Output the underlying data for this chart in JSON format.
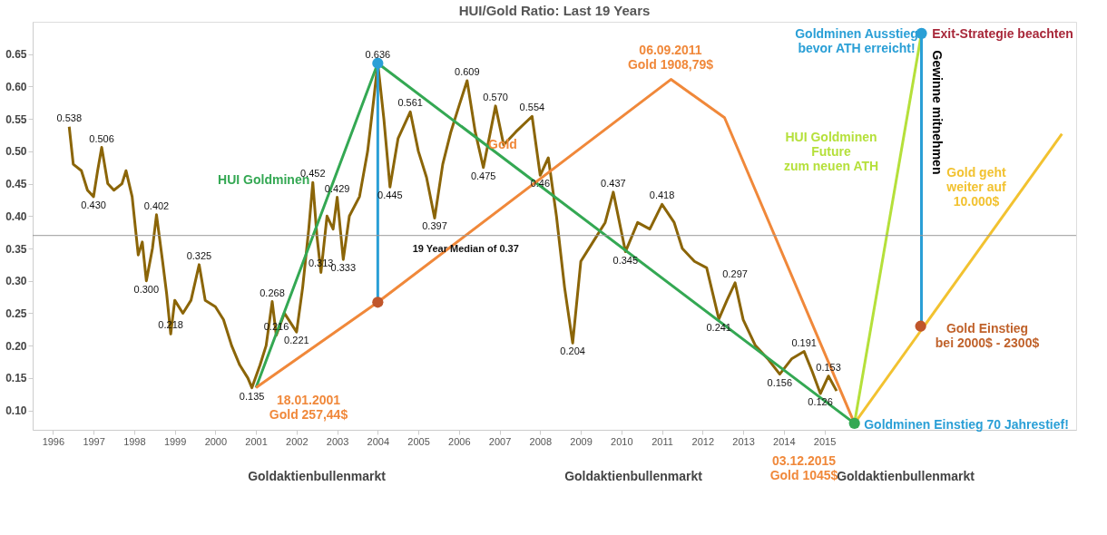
{
  "chart_data": {
    "type": "line",
    "title": "HUI/Gold Ratio: Last 19 Years",
    "xlim": [
      1995.5,
      2021.2
    ],
    "xticks": [
      1996,
      1997,
      1998,
      1999,
      2000,
      2001,
      2002,
      2003,
      2004,
      2005,
      2006,
      2007,
      2008,
      2009,
      2010,
      2011,
      2012,
      2013,
      2014,
      2015
    ],
    "ylim": [
      0.07,
      0.7
    ],
    "yticks": [
      {
        "value": 0.1,
        "label": "0.10"
      },
      {
        "value": 0.15,
        "label": "0.15"
      },
      {
        "value": 0.2,
        "label": "0.20"
      },
      {
        "value": 0.25,
        "label": "0.25"
      },
      {
        "value": 0.3,
        "label": "0.30"
      },
      {
        "value": 0.35,
        "label": "0.35"
      },
      {
        "value": 0.4,
        "label": "0.40"
      },
      {
        "value": 0.45,
        "label": "0.45"
      },
      {
        "value": 0.5,
        "label": "0.50"
      },
      {
        "value": 0.55,
        "label": "0.55"
      },
      {
        "value": 0.6,
        "label": "0.60"
      },
      {
        "value": 0.65,
        "label": "0.65"
      }
    ],
    "series": [
      {
        "color": "#8b6508",
        "x": [
          1996.4,
          1996.5,
          1996.7,
          1996.85,
          1997.0,
          1997.1,
          1997.2,
          1997.35,
          1997.5,
          1997.7,
          1997.8,
          1997.95,
          1998.1,
          1998.2,
          1998.3,
          1998.45,
          1998.55,
          1998.7,
          1998.8,
          1998.9,
          1999.0,
          1999.2,
          1999.4,
          1999.6,
          1999.75,
          2000.0,
          2000.2,
          2000.4,
          2000.6,
          2000.8,
          2000.9,
          2001.1,
          2001.25,
          2001.4,
          2001.5,
          2001.7,
          2002.0,
          2002.15,
          2002.3,
          2002.4,
          2002.5,
          2002.6,
          2002.75,
          2002.9,
          2003.0,
          2003.15,
          2003.3,
          2003.55,
          2003.75,
          2003.9,
          2004.0,
          2004.15,
          2004.3,
          2004.5,
          2004.8,
          2005.0,
          2005.2,
          2005.4,
          2005.6,
          2005.8,
          2006.0,
          2006.2,
          2006.4,
          2006.6,
          2006.9,
          2007.1,
          2007.4,
          2007.8,
          2008.0,
          2008.2,
          2008.4,
          2008.6,
          2008.8,
          2009.0,
          2009.3,
          2009.6,
          2009.8,
          2010.1,
          2010.4,
          2010.7,
          2011.0,
          2011.3,
          2011.5,
          2011.8,
          2012.1,
          2012.4,
          2012.6,
          2012.8,
          2013.0,
          2013.3,
          2013.6,
          2013.9,
          2014.2,
          2014.5,
          2014.7,
          2014.9,
          2015.1,
          2015.3
        ],
        "values": [
          0.538,
          0.48,
          0.47,
          0.44,
          0.43,
          0.47,
          0.506,
          0.45,
          0.44,
          0.45,
          0.47,
          0.43,
          0.34,
          0.36,
          0.3,
          0.35,
          0.402,
          0.33,
          0.28,
          0.218,
          0.27,
          0.25,
          0.27,
          0.325,
          0.27,
          0.26,
          0.24,
          0.2,
          0.17,
          0.15,
          0.135,
          0.17,
          0.2,
          0.268,
          0.216,
          0.25,
          0.221,
          0.29,
          0.38,
          0.452,
          0.37,
          0.313,
          0.4,
          0.38,
          0.429,
          0.333,
          0.4,
          0.43,
          0.5,
          0.58,
          0.636,
          0.55,
          0.445,
          0.52,
          0.561,
          0.5,
          0.46,
          0.397,
          0.48,
          0.53,
          0.57,
          0.609,
          0.53,
          0.475,
          0.57,
          0.51,
          0.53,
          0.554,
          0.463,
          0.49,
          0.4,
          0.29,
          0.204,
          0.33,
          0.36,
          0.39,
          0.437,
          0.345,
          0.39,
          0.38,
          0.418,
          0.39,
          0.35,
          0.33,
          0.32,
          0.241,
          0.27,
          0.297,
          0.24,
          0.2,
          0.18,
          0.156,
          0.18,
          0.191,
          0.16,
          0.126,
          0.153,
          0.13
        ]
      },
      {
        "name": "HUI Goldminen",
        "color": "#34a853",
        "x": [
          2001,
          2004,
          2015.74
        ],
        "values": [
          0.135,
          0.636,
          0.08
        ]
      },
      {
        "name": "Gold",
        "color": "#f0883a",
        "x": [
          2001,
          2004,
          2011.22,
          2012.54,
          2015.74
        ],
        "values": [
          0.135,
          0.267,
          0.611,
          0.552,
          0.08
        ]
      },
      {
        "color": "#b5e03a",
        "x": [
          2015.74,
          2017.39
        ],
        "values": [
          0.08,
          0.682
        ]
      },
      {
        "color": "#f2c230",
        "x": [
          2015.74,
          2020.85
        ],
        "values": [
          0.08,
          0.527
        ]
      },
      {
        "color": "#2a9fd6",
        "x": [
          2004,
          2004
        ],
        "values": [
          0.267,
          0.636
        ]
      },
      {
        "color": "#2a9fd6",
        "x": [
          2017.39,
          2017.39
        ],
        "values": [
          0.682,
          0.23
        ]
      },
      {
        "type": "scatter",
        "marker": "circle",
        "x": [
          2004,
          2017.39,
          2004,
          2017.37,
          2015.74
        ],
        "values": [
          0.636,
          0.682,
          0.267,
          0.23,
          0.08
        ],
        "colors": [
          "#2a9fd6",
          "#2a9fd6",
          "#c0562b",
          "#c0562b",
          "#34a853"
        ]
      }
    ],
    "ref_lines": [
      {
        "axis": "y",
        "value": 0.37,
        "label": "19 Year Median of 0.37",
        "color": "#999999"
      }
    ],
    "annotations": [
      {
        "text": "0.538",
        "x": 1996.4,
        "y": 0.538
      },
      {
        "text": "0.506",
        "x": 1997.2,
        "y": 0.506
      },
      {
        "text": "0.430",
        "x": 1997.0,
        "y": 0.43
      },
      {
        "text": "0.402",
        "x": 1998.55,
        "y": 0.402
      },
      {
        "text": "0.300",
        "x": 1998.3,
        "y": 0.3
      },
      {
        "text": "0.325",
        "x": 1999.6,
        "y": 0.325
      },
      {
        "text": "0.218",
        "x": 1998.9,
        "y": 0.218
      },
      {
        "text": "0.135",
        "x": 2000.9,
        "y": 0.135
      },
      {
        "text": "0.268",
        "x": 2001.4,
        "y": 0.268
      },
      {
        "text": "0.216",
        "x": 2001.5,
        "y": 0.216
      },
      {
        "text": "0.221",
        "x": 2002.0,
        "y": 0.221
      },
      {
        "text": "0.452",
        "x": 2002.4,
        "y": 0.452
      },
      {
        "text": "0.313",
        "x": 2002.6,
        "y": 0.313
      },
      {
        "text": "0.429",
        "x": 2003.0,
        "y": 0.429
      },
      {
        "text": "0.333",
        "x": 2003.15,
        "y": 0.333
      },
      {
        "text": "0.636",
        "x": 2004.0,
        "y": 0.636
      },
      {
        "text": "0.445",
        "x": 2004.3,
        "y": 0.445
      },
      {
        "text": "0.561",
        "x": 2004.8,
        "y": 0.561
      },
      {
        "text": "0.397",
        "x": 2005.4,
        "y": 0.397
      },
      {
        "text": "0.609",
        "x": 2006.2,
        "y": 0.609
      },
      {
        "text": "0.475",
        "x": 2006.6,
        "y": 0.475
      },
      {
        "text": "0.570",
        "x": 2006.9,
        "y": 0.57
      },
      {
        "text": "0.554",
        "x": 2007.8,
        "y": 0.554
      },
      {
        "text": "0.46",
        "x": 2008.0,
        "y": 0.463
      },
      {
        "text": "0.204",
        "x": 2008.8,
        "y": 0.204
      },
      {
        "text": "0.437",
        "x": 2009.8,
        "y": 0.437
      },
      {
        "text": "0.345",
        "x": 2010.1,
        "y": 0.345
      },
      {
        "text": "0.418",
        "x": 2011.0,
        "y": 0.418
      },
      {
        "text": "0.241",
        "x": 2012.4,
        "y": 0.241
      },
      {
        "text": "0.297",
        "x": 2012.8,
        "y": 0.297
      },
      {
        "text": "0.156",
        "x": 2013.9,
        "y": 0.156
      },
      {
        "text": "0.191",
        "x": 2014.5,
        "y": 0.191
      },
      {
        "text": "0.126",
        "x": 2014.9,
        "y": 0.126
      },
      {
        "text": "0.153",
        "x": 2015.1,
        "y": 0.153
      },
      "18.01.2001\nGold 257,44$",
      "06.09.2011\nGold 1908,79$",
      "03.12.2015\nGold 1045$",
      "Goldminen Ausstieg\nbevor ATH erreicht!",
      "Exit-Strategie beachten",
      "Gewinne mitnehmen",
      "HUI Goldminen\nFuture\nzum neuen ATH",
      "Gold geht\nweiter auf\n10.000$",
      "Gold Einstieg\nbei 2000$ - 2300$",
      "Goldminen Einstieg 70 Jahrestief!",
      "Goldaktienbullenmarkt",
      "Goldaktienbullenmarkt",
      "Goldaktienbullenmarkt"
    ]
  }
}
